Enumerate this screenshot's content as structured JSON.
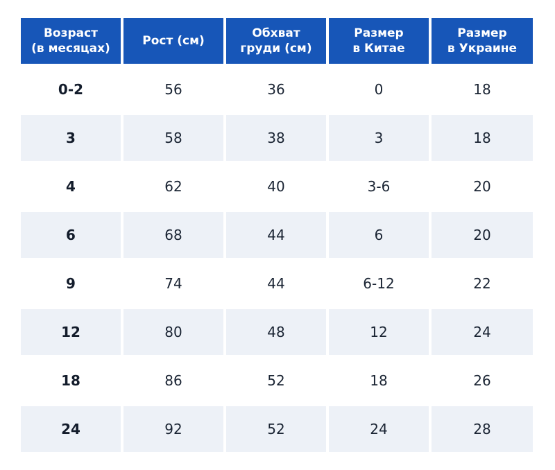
{
  "table": {
    "headers": [
      "Возраст\n(в месяцах)",
      "Рост (см)",
      "Обхват\nгруди (см)",
      "Размер\nв Китае",
      "Размер\nв Украине"
    ],
    "rows": [
      [
        "0-2",
        "56",
        "36",
        "0",
        "18"
      ],
      [
        "3",
        "58",
        "38",
        "3",
        "18"
      ],
      [
        "4",
        "62",
        "40",
        "3-6",
        "20"
      ],
      [
        "6",
        "68",
        "44",
        "6",
        "20"
      ],
      [
        "9",
        "74",
        "44",
        "6-12",
        "22"
      ],
      [
        "12",
        "80",
        "48",
        "12",
        "24"
      ],
      [
        "18",
        "86",
        "52",
        "18",
        "26"
      ],
      [
        "24",
        "92",
        "52",
        "24",
        "28"
      ]
    ]
  },
  "colors": {
    "header_bg": "#1756b8",
    "header_text": "#ffffff",
    "stripe_bg": "#edf1f7",
    "body_text": "#1a2433"
  }
}
